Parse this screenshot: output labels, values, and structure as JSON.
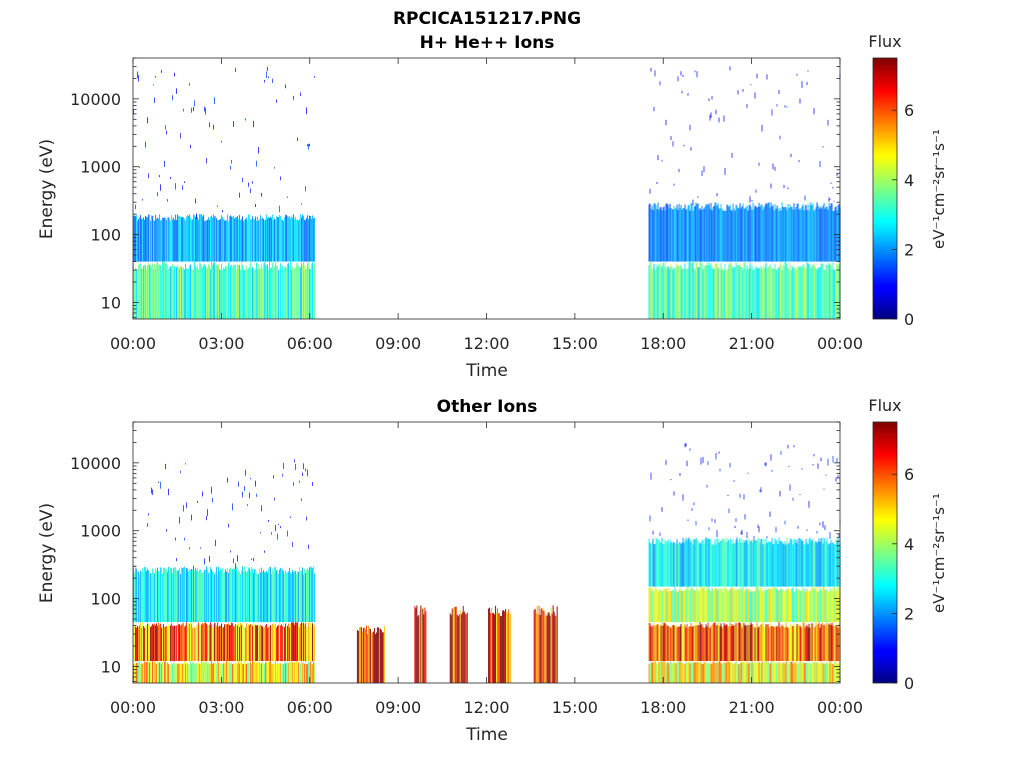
{
  "figure": {
    "filename_title": "RPCICA151217.PNG"
  },
  "chart_data": [
    {
      "type": "heatmap",
      "title": "H+ He++ Ions",
      "xlabel": "Time",
      "ylabel": "Energy (eV)",
      "y_scale": "log",
      "ylim": [
        5.7,
        40000
      ],
      "xlim_hours": [
        0,
        24
      ],
      "x_tick_labels": [
        "00:00",
        "03:00",
        "06:00",
        "09:00",
        "12:00",
        "15:00",
        "18:00",
        "21:00",
        "00:00"
      ],
      "y_tick_values": [
        10,
        100,
        1000,
        10000
      ],
      "y_tick_labels": [
        "10",
        "100",
        "1000",
        "10000"
      ],
      "colorbar": {
        "label": "Flux",
        "units": "eV⁻¹cm⁻²sr⁻¹s⁻¹",
        "range": [
          0,
          7.5
        ],
        "ticks": [
          0,
          2,
          4,
          6
        ],
        "colormap": "jet"
      },
      "data_blocks": [
        {
          "t_start_h": 0.0,
          "t_end_h": 6.15,
          "e_min": 5.7,
          "e_max": 40,
          "flux": 3.3
        },
        {
          "t_start_h": 0.0,
          "t_end_h": 6.15,
          "e_min": 40,
          "e_max": 200,
          "flux": 2.2
        },
        {
          "t_start_h": 0.0,
          "t_end_h": 6.15,
          "e_min": 200,
          "e_max": 30000,
          "flux": 1.2
        },
        {
          "t_start_h": 17.5,
          "t_end_h": 24.0,
          "e_min": 5.7,
          "e_max": 40,
          "flux": 3.5
        },
        {
          "t_start_h": 17.5,
          "t_end_h": 24.0,
          "e_min": 40,
          "e_max": 300,
          "flux": 2.0
        },
        {
          "t_start_h": 17.5,
          "t_end_h": 24.0,
          "e_min": 300,
          "e_max": 40000,
          "flux": 1.0
        }
      ],
      "gap": {
        "t_start_h": 6.15,
        "t_end_h": 17.5
      }
    },
    {
      "type": "heatmap",
      "title": "Other Ions",
      "xlabel": "Time",
      "ylabel": "Energy (eV)",
      "y_scale": "log",
      "ylim": [
        5.7,
        40000
      ],
      "xlim_hours": [
        0,
        24
      ],
      "x_tick_labels": [
        "00:00",
        "03:00",
        "06:00",
        "09:00",
        "12:00",
        "15:00",
        "18:00",
        "21:00",
        "00:00"
      ],
      "y_tick_values": [
        10,
        100,
        1000,
        10000
      ],
      "y_tick_labels": [
        "10",
        "100",
        "1000",
        "10000"
      ],
      "colorbar": {
        "label": "Flux",
        "units": "eV⁻¹cm⁻²sr⁻¹s⁻¹",
        "range": [
          0,
          7.5
        ],
        "ticks": [
          0,
          2,
          4,
          6
        ],
        "colormap": "jet"
      },
      "data_blocks": [
        {
          "t_start_h": 0.0,
          "t_end_h": 6.15,
          "e_min": 5.7,
          "e_max": 12,
          "flux": 4.8
        },
        {
          "t_start_h": 0.0,
          "t_end_h": 6.15,
          "e_min": 12,
          "e_max": 45,
          "flux": 6.0
        },
        {
          "t_start_h": 0.0,
          "t_end_h": 6.15,
          "e_min": 45,
          "e_max": 300,
          "flux": 2.8
        },
        {
          "t_start_h": 0.0,
          "t_end_h": 6.15,
          "e_min": 300,
          "e_max": 12000,
          "flux": 1.2
        },
        {
          "t_start_h": 7.6,
          "t_end_h": 8.55,
          "e_min": 5.7,
          "e_max": 40,
          "flux": 7.2
        },
        {
          "t_start_h": 9.55,
          "t_end_h": 9.95,
          "e_min": 5.7,
          "e_max": 80,
          "flux": 7.0
        },
        {
          "t_start_h": 10.75,
          "t_end_h": 11.35,
          "e_min": 5.7,
          "e_max": 80,
          "flux": 7.0
        },
        {
          "t_start_h": 12.05,
          "t_end_h": 12.8,
          "e_min": 5.7,
          "e_max": 80,
          "flux": 7.0
        },
        {
          "t_start_h": 13.6,
          "t_end_h": 14.4,
          "e_min": 5.7,
          "e_max": 80,
          "flux": 7.0
        },
        {
          "t_start_h": 17.5,
          "t_end_h": 24.0,
          "e_min": 5.7,
          "e_max": 12,
          "flux": 4.8
        },
        {
          "t_start_h": 17.5,
          "t_end_h": 24.0,
          "e_min": 12,
          "e_max": 45,
          "flux": 6.2
        },
        {
          "t_start_h": 17.5,
          "t_end_h": 24.0,
          "e_min": 45,
          "e_max": 150,
          "flux": 4.2
        },
        {
          "t_start_h": 17.5,
          "t_end_h": 24.0,
          "e_min": 150,
          "e_max": 800,
          "flux": 2.8
        },
        {
          "t_start_h": 17.5,
          "t_end_h": 24.0,
          "e_min": 800,
          "e_max": 20000,
          "flux": 1.2
        }
      ],
      "gap": {
        "t_start_h": 6.15,
        "t_end_h": 17.5
      }
    }
  ]
}
